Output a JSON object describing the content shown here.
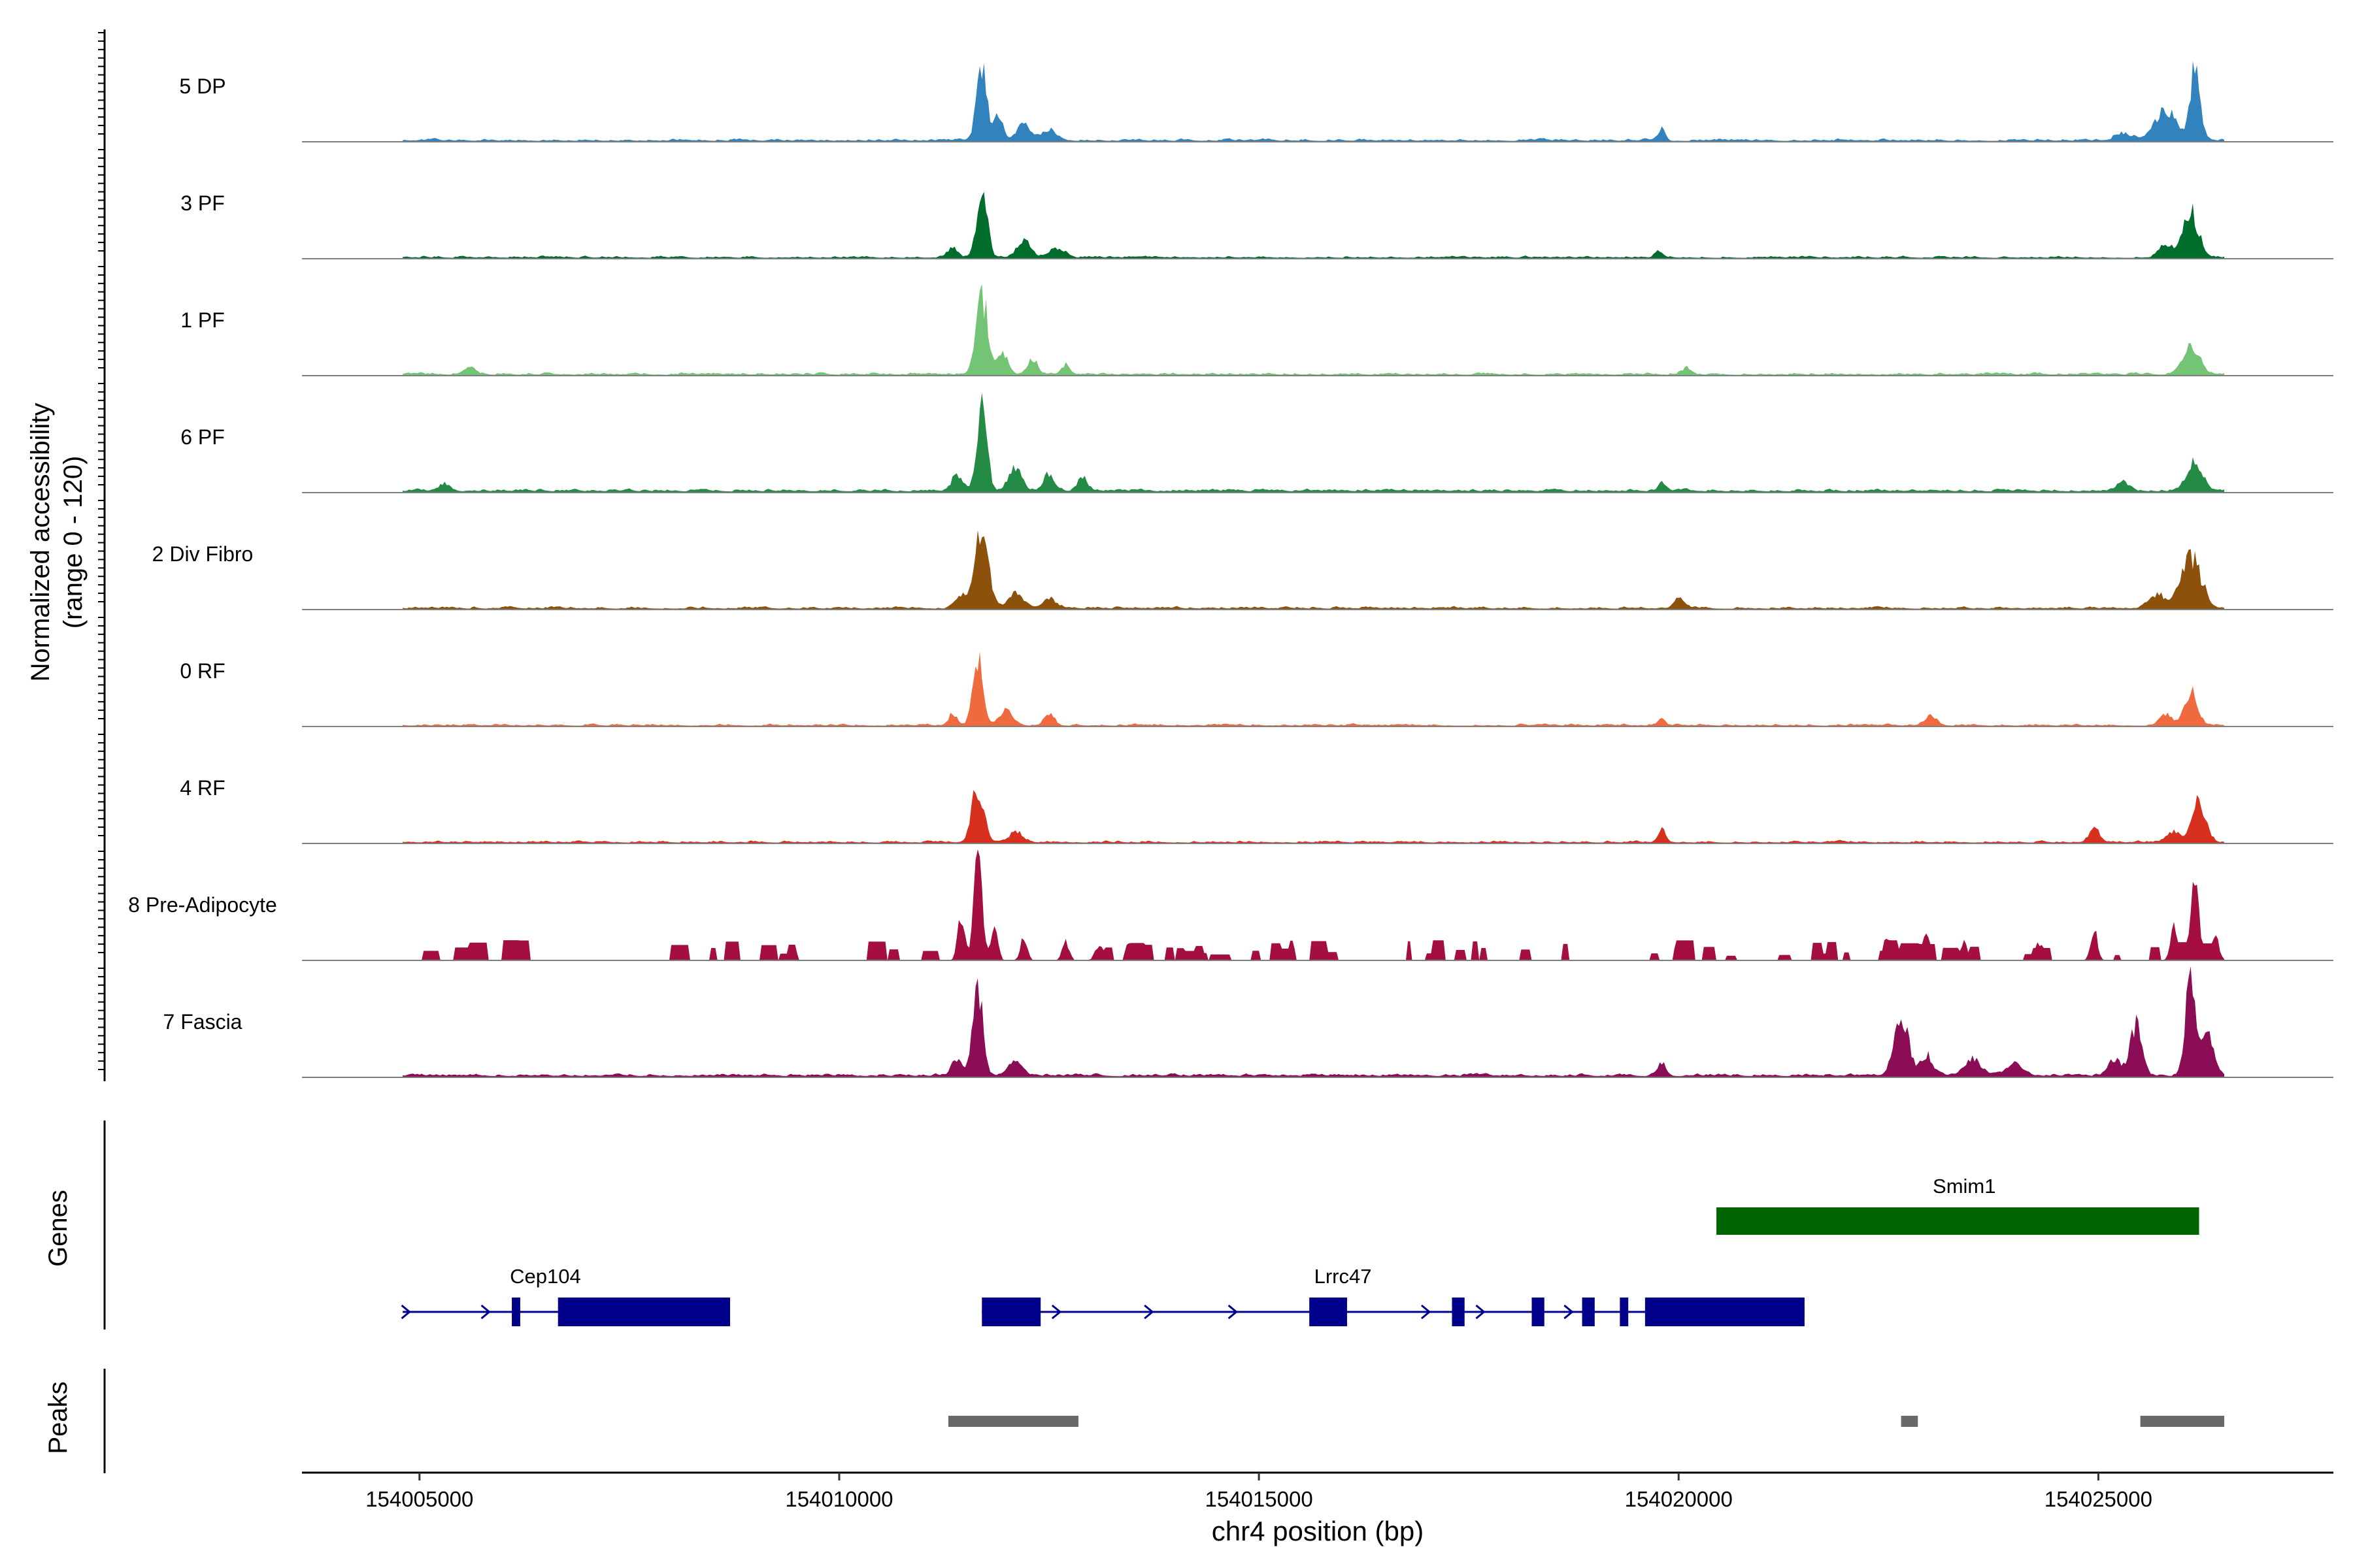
{
  "chart_data": {
    "type": "area",
    "title": "",
    "ylabel_line1": "Normalized accessibility",
    "ylabel_line2": "(range 0 - 120)",
    "y_range": [
      0,
      120
    ],
    "xlabel": "chr4 position (bp)",
    "xlim": [
      154003600,
      154027800
    ],
    "xticks": [
      {
        "value": 154005000,
        "label": "154005000"
      },
      {
        "value": 154010000,
        "label": "154010000"
      },
      {
        "value": 154015000,
        "label": "154015000"
      },
      {
        "value": 154020000,
        "label": "154020000"
      },
      {
        "value": 154025000,
        "label": "154025000"
      }
    ],
    "coverage_range": [
      154004800,
      154026500
    ],
    "tracks": [
      {
        "name": "5 DP",
        "color": "#3182bd",
        "seed": 11,
        "density": 0.5,
        "baseline": 3,
        "peaks": [
          [
            154011700,
            110,
            60
          ],
          [
            154011900,
            35,
            50
          ],
          [
            154012200,
            22,
            80
          ],
          [
            154012500,
            14,
            90
          ],
          [
            154019800,
            16,
            40
          ],
          [
            154025800,
            40,
            120
          ],
          [
            154026150,
            95,
            60
          ],
          [
            154025300,
            10,
            100
          ]
        ]
      },
      {
        "name": "3 PF",
        "color": "#006d2c",
        "seed": 23,
        "density": 0.45,
        "baseline": 3,
        "peaks": [
          [
            154011700,
            100,
            60
          ],
          [
            154011350,
            14,
            60
          ],
          [
            154012200,
            22,
            80
          ],
          [
            154012600,
            12,
            90
          ],
          [
            154026100,
            62,
            90
          ],
          [
            154025800,
            18,
            80
          ],
          [
            154019750,
            8,
            40
          ]
        ]
      },
      {
        "name": "1 PF",
        "color": "#74c476",
        "seed": 37,
        "density": 0.5,
        "baseline": 3,
        "peaks": [
          [
            154011700,
            105,
            70
          ],
          [
            154011950,
            30,
            60
          ],
          [
            154012300,
            22,
            60
          ],
          [
            154012700,
            14,
            50
          ],
          [
            154005600,
            8,
            80
          ],
          [
            154026100,
            38,
            100
          ],
          [
            154020100,
            8,
            60
          ]
        ]
      },
      {
        "name": "6 PF",
        "color": "#238b45",
        "seed": 53,
        "density": 0.55,
        "baseline": 4,
        "peaks": [
          [
            154011700,
            112,
            60
          ],
          [
            154011400,
            22,
            60
          ],
          [
            154012100,
            30,
            80
          ],
          [
            154012500,
            22,
            70
          ],
          [
            154012900,
            18,
            60
          ],
          [
            154005300,
            10,
            60
          ],
          [
            154019800,
            12,
            40
          ],
          [
            154026150,
            42,
            90
          ],
          [
            154025300,
            14,
            70
          ]
        ]
      },
      {
        "name": "2 Div Fibro",
        "color": "#8c510a",
        "seed": 71,
        "density": 0.5,
        "baseline": 3,
        "peaks": [
          [
            154011700,
            105,
            80
          ],
          [
            154011450,
            20,
            60
          ],
          [
            154012100,
            22,
            90
          ],
          [
            154012500,
            12,
            80
          ],
          [
            154020000,
            14,
            60
          ],
          [
            154026100,
            70,
            120
          ],
          [
            154025700,
            18,
            90
          ]
        ]
      },
      {
        "name": "0 RF",
        "color": "#ef6b3f",
        "seed": 89,
        "density": 0.45,
        "baseline": 3,
        "peaks": [
          [
            154011650,
            90,
            60
          ],
          [
            154011350,
            16,
            50
          ],
          [
            154012000,
            20,
            80
          ],
          [
            154012500,
            16,
            60
          ],
          [
            154019800,
            10,
            40
          ],
          [
            154023000,
            12,
            70
          ],
          [
            154026100,
            45,
            80
          ],
          [
            154025800,
            14,
            70
          ]
        ]
      },
      {
        "name": "4 RF",
        "color": "#d7301f",
        "seed": 97,
        "density": 0.45,
        "baseline": 3,
        "peaks": [
          [
            154011650,
            75,
            70
          ],
          [
            154012100,
            14,
            90
          ],
          [
            154019800,
            16,
            40
          ],
          [
            154024950,
            20,
            60
          ],
          [
            154026200,
            55,
            80
          ],
          [
            154025900,
            14,
            80
          ]
        ]
      },
      {
        "name": "8 Pre-Adipocyte",
        "color": "#a50f40",
        "seed": 131,
        "density": 0.2,
        "baseline": 0,
        "blocky": true,
        "peaks": [
          [
            154011650,
            140,
            50
          ],
          [
            154011450,
            60,
            40
          ],
          [
            154011850,
            45,
            40
          ],
          [
            154012200,
            30,
            40
          ],
          [
            154012700,
            26,
            40
          ],
          [
            154013100,
            20,
            50
          ],
          [
            154022500,
            30,
            40
          ],
          [
            154022950,
            38,
            40
          ],
          [
            154024950,
            40,
            40
          ],
          [
            154026150,
            100,
            50
          ],
          [
            154025900,
            50,
            40
          ],
          [
            154026400,
            35,
            40
          ],
          [
            154023400,
            25,
            40
          ],
          [
            154024300,
            24,
            40
          ]
        ]
      },
      {
        "name": "7 Fascia",
        "color": "#8b0d55",
        "seed": 149,
        "density": 0.55,
        "baseline": 4,
        "peaks": [
          [
            154011650,
            125,
            60
          ],
          [
            154011400,
            22,
            60
          ],
          [
            154012100,
            22,
            80
          ],
          [
            154022650,
            85,
            80
          ],
          [
            154022950,
            28,
            80
          ],
          [
            154023500,
            22,
            100
          ],
          [
            154025450,
            70,
            70
          ],
          [
            154025200,
            24,
            70
          ],
          [
            154026100,
            150,
            60
          ],
          [
            154026300,
            60,
            70
          ],
          [
            154019800,
            18,
            50
          ],
          [
            154024000,
            16,
            90
          ]
        ]
      }
    ],
    "genes_label": "Genes",
    "peaks_label": "Peaks",
    "genes": [
      {
        "name": "Smim1",
        "color": "#006400",
        "start": 154020450,
        "end": 154026200,
        "exons": [
          [
            154020450,
            154026200
          ]
        ]
      },
      {
        "name": "Cep104",
        "color": "#00008b",
        "start": 154004800,
        "end": 154008700,
        "label_pos": 154006500,
        "exons": [
          [
            154006100,
            154006200
          ],
          [
            154006650,
            154008700
          ]
        ],
        "arrows": [
          154004850,
          154005800,
          154006900
        ]
      },
      {
        "name": "Lrrc47",
        "color": "#00008b",
        "start": 154011700,
        "end": 154021500,
        "label_pos": 154016000,
        "exons": [
          [
            154011700,
            154012400
          ],
          [
            154015600,
            154016050
          ],
          [
            154017300,
            154017450
          ],
          [
            154018250,
            154018400
          ],
          [
            154018850,
            154019000
          ],
          [
            154019300,
            154019400
          ],
          [
            154019600,
            154021500
          ]
        ],
        "arrows": [
          154012600,
          154013700,
          154014700,
          154017000,
          154017650,
          154018700
        ]
      }
    ],
    "peaks": [
      [
        154011300,
        154012850
      ],
      [
        154022650,
        154022850
      ],
      [
        154025500,
        154026500
      ]
    ]
  }
}
